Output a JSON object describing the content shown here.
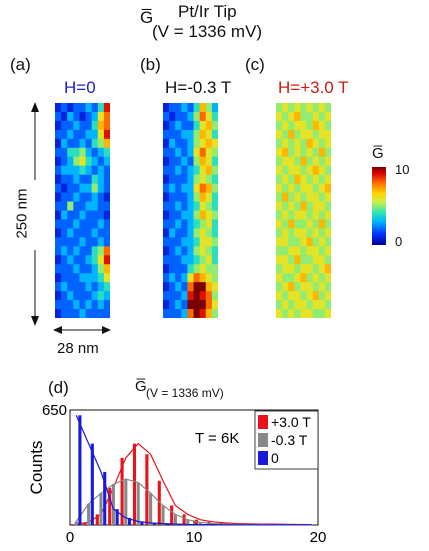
{
  "figure": {
    "header_symbol": "G̅",
    "header_line1": "Pt/Ir Tip",
    "header_line2": "(V = 1336 mV)"
  },
  "panels": [
    {
      "tag": "(a)",
      "field": "H=0",
      "color": "#1a22cc"
    },
    {
      "tag": "(b)",
      "field": "H=-0.3 T",
      "color": "#111111"
    },
    {
      "tag": "(c)",
      "field": "H=+3.0 T",
      "color": "#d01a12"
    }
  ],
  "scale": {
    "vertical": "250 nm",
    "horizontal": "28 nm"
  },
  "colorbar": {
    "label": "G̅",
    "max_label": "10",
    "min_label": "0",
    "min": 0,
    "max": 10
  },
  "chart_data": [
    {
      "type": "heatmap",
      "panel": "(a)",
      "title": "H=0",
      "rows": 24,
      "cols": 9,
      "values": [
        [
          1,
          2,
          1,
          2,
          2,
          3,
          2,
          4,
          9
        ],
        [
          2,
          1,
          3,
          2,
          1,
          2,
          3,
          6,
          8
        ],
        [
          1,
          2,
          2,
          3,
          2,
          2,
          4,
          7,
          8
        ],
        [
          2,
          2,
          3,
          2,
          2,
          3,
          3,
          6,
          9
        ],
        [
          1,
          3,
          2,
          2,
          3,
          2,
          4,
          5,
          7
        ],
        [
          2,
          2,
          4,
          4,
          5,
          3,
          2,
          3,
          4
        ],
        [
          1,
          2,
          3,
          5,
          6,
          4,
          3,
          2,
          3
        ],
        [
          2,
          3,
          3,
          3,
          4,
          3,
          2,
          3,
          2
        ],
        [
          1,
          2,
          2,
          3,
          2,
          2,
          4,
          3,
          2
        ],
        [
          2,
          1,
          2,
          2,
          3,
          3,
          5,
          3,
          2
        ],
        [
          1,
          2,
          2,
          3,
          2,
          2,
          3,
          2,
          1
        ],
        [
          2,
          2,
          5,
          2,
          2,
          3,
          3,
          2,
          2
        ],
        [
          1,
          3,
          2,
          2,
          3,
          2,
          2,
          2,
          1
        ],
        [
          2,
          2,
          2,
          3,
          2,
          2,
          2,
          3,
          2
        ],
        [
          1,
          2,
          3,
          2,
          2,
          2,
          3,
          2,
          2
        ],
        [
          2,
          2,
          2,
          2,
          3,
          2,
          2,
          3,
          2
        ],
        [
          2,
          3,
          2,
          3,
          2,
          2,
          4,
          5,
          8
        ],
        [
          1,
          2,
          3,
          2,
          2,
          3,
          4,
          6,
          9
        ],
        [
          2,
          2,
          2,
          3,
          2,
          2,
          3,
          5,
          7
        ],
        [
          1,
          2,
          2,
          2,
          3,
          3,
          3,
          4,
          6
        ],
        [
          2,
          3,
          2,
          2,
          2,
          3,
          2,
          3,
          4
        ],
        [
          1,
          2,
          3,
          2,
          2,
          2,
          3,
          4,
          3
        ],
        [
          2,
          2,
          2,
          3,
          2,
          3,
          2,
          3,
          2
        ],
        [
          1,
          2,
          2,
          2,
          3,
          2,
          2,
          2,
          2
        ]
      ]
    },
    {
      "type": "heatmap",
      "panel": "(b)",
      "title": "H=-0.3 T",
      "rows": 24,
      "cols": 9,
      "values": [
        [
          1,
          2,
          2,
          3,
          2,
          4,
          7,
          5,
          3
        ],
        [
          2,
          1,
          2,
          2,
          3,
          5,
          8,
          6,
          4
        ],
        [
          1,
          2,
          3,
          2,
          2,
          4,
          6,
          7,
          5
        ],
        [
          2,
          2,
          2,
          3,
          3,
          5,
          7,
          6,
          4
        ],
        [
          1,
          3,
          2,
          2,
          3,
          5,
          6,
          7,
          6
        ],
        [
          2,
          2,
          3,
          2,
          3,
          6,
          8,
          6,
          5
        ],
        [
          1,
          2,
          2,
          3,
          2,
          5,
          7,
          6,
          4
        ],
        [
          2,
          2,
          3,
          2,
          3,
          4,
          6,
          7,
          5
        ],
        [
          1,
          2,
          2,
          2,
          3,
          5,
          6,
          5,
          4
        ],
        [
          2,
          3,
          2,
          3,
          3,
          6,
          8,
          7,
          5
        ],
        [
          1,
          2,
          2,
          2,
          3,
          5,
          7,
          6,
          4
        ],
        [
          2,
          2,
          3,
          2,
          3,
          4,
          6,
          5,
          4
        ],
        [
          1,
          2,
          2,
          3,
          3,
          5,
          7,
          6,
          5
        ],
        [
          2,
          2,
          3,
          2,
          3,
          4,
          5,
          6,
          4
        ],
        [
          1,
          3,
          2,
          2,
          3,
          5,
          6,
          5,
          4
        ],
        [
          2,
          2,
          2,
          3,
          3,
          4,
          6,
          6,
          5
        ],
        [
          1,
          2,
          3,
          2,
          3,
          5,
          6,
          5,
          4
        ],
        [
          2,
          2,
          2,
          3,
          3,
          4,
          5,
          6,
          4
        ],
        [
          1,
          2,
          2,
          2,
          4,
          5,
          6,
          5,
          5
        ],
        [
          2,
          3,
          2,
          3,
          6,
          8,
          7,
          6,
          5
        ],
        [
          1,
          2,
          3,
          2,
          8,
          10,
          10,
          7,
          6
        ],
        [
          2,
          2,
          2,
          3,
          9,
          10,
          9,
          8,
          5
        ],
        [
          1,
          2,
          3,
          2,
          10,
          10,
          10,
          8,
          6
        ],
        [
          2,
          2,
          2,
          3,
          8,
          10,
          9,
          7,
          5
        ]
      ]
    },
    {
      "type": "heatmap",
      "panel": "(c)",
      "title": "H=+3.0 T",
      "rows": 24,
      "cols": 9,
      "values": [
        [
          5,
          6,
          5,
          6,
          5,
          6,
          5,
          6,
          5
        ],
        [
          6,
          5,
          6,
          7,
          5,
          5,
          6,
          5,
          6
        ],
        [
          5,
          6,
          5,
          6,
          6,
          5,
          7,
          6,
          5
        ],
        [
          6,
          5,
          7,
          5,
          6,
          6,
          5,
          6,
          6
        ],
        [
          5,
          6,
          5,
          6,
          5,
          7,
          6,
          5,
          6
        ],
        [
          6,
          7,
          5,
          6,
          5,
          6,
          5,
          7,
          5
        ],
        [
          5,
          6,
          6,
          5,
          7,
          5,
          6,
          5,
          6
        ],
        [
          6,
          5,
          6,
          6,
          5,
          6,
          7,
          6,
          5
        ],
        [
          5,
          6,
          5,
          7,
          6,
          5,
          6,
          5,
          6
        ],
        [
          6,
          5,
          6,
          5,
          6,
          6,
          5,
          6,
          7
        ],
        [
          5,
          7,
          5,
          6,
          5,
          6,
          6,
          5,
          6
        ],
        [
          6,
          5,
          6,
          5,
          7,
          5,
          6,
          6,
          5
        ],
        [
          5,
          6,
          5,
          6,
          6,
          5,
          6,
          5,
          6
        ],
        [
          6,
          5,
          7,
          5,
          5,
          6,
          5,
          7,
          5
        ],
        [
          5,
          6,
          5,
          6,
          6,
          5,
          6,
          5,
          6
        ],
        [
          6,
          6,
          5,
          5,
          6,
          7,
          5,
          6,
          5
        ],
        [
          5,
          5,
          6,
          6,
          5,
          6,
          6,
          5,
          6
        ],
        [
          6,
          6,
          5,
          7,
          5,
          5,
          6,
          6,
          5
        ],
        [
          5,
          6,
          6,
          5,
          6,
          6,
          5,
          6,
          7
        ],
        [
          6,
          5,
          5,
          6,
          7,
          5,
          6,
          5,
          6
        ],
        [
          5,
          6,
          7,
          5,
          6,
          6,
          5,
          6,
          5
        ],
        [
          6,
          5,
          6,
          6,
          5,
          6,
          7,
          5,
          6
        ],
        [
          5,
          6,
          5,
          6,
          6,
          5,
          6,
          6,
          5
        ],
        [
          6,
          5,
          6,
          5,
          6,
          6,
          5,
          5,
          6
        ]
      ]
    },
    {
      "type": "bar",
      "panel": "(d)",
      "title": "G̅",
      "title_sub": "(V = 1336 mV)",
      "annotation": "T = 6K",
      "ylabel": "Counts",
      "xlabel": "",
      "xlim": [
        0,
        20
      ],
      "ylim": [
        0,
        650
      ],
      "xticks": [
        0,
        10,
        20
      ],
      "ytick_label": "650",
      "bin_width": 1,
      "categories": [
        0.5,
        1.5,
        2.5,
        3.5,
        4.5,
        5.5,
        6.5,
        7.5,
        8.5,
        9.5,
        10.5,
        11.5,
        12.5,
        13.5,
        14.5,
        15.5,
        16.5,
        17.5,
        18.5,
        19.5
      ],
      "series": [
        {
          "name": "+3.0 T",
          "color": "#e8141a",
          "values": [
            5,
            15,
            60,
            210,
            380,
            460,
            400,
            250,
            110,
            60,
            30,
            18,
            12,
            8,
            6,
            5,
            5,
            4,
            3,
            2
          ]
        },
        {
          "name": "-0.3 T",
          "color": "#888888",
          "values": [
            20,
            120,
            180,
            230,
            260,
            240,
            180,
            110,
            60,
            30,
            15,
            8,
            5,
            3,
            2,
            2,
            1,
            1,
            1,
            1
          ]
        },
        {
          "name": "0",
          "color": "#1a1adc",
          "values": [
            620,
            460,
            300,
            90,
            40,
            20,
            12,
            8,
            5,
            3,
            2,
            2,
            1,
            1,
            1,
            1,
            1,
            1,
            1,
            1
          ]
        }
      ],
      "legend_position": "top-right"
    }
  ]
}
